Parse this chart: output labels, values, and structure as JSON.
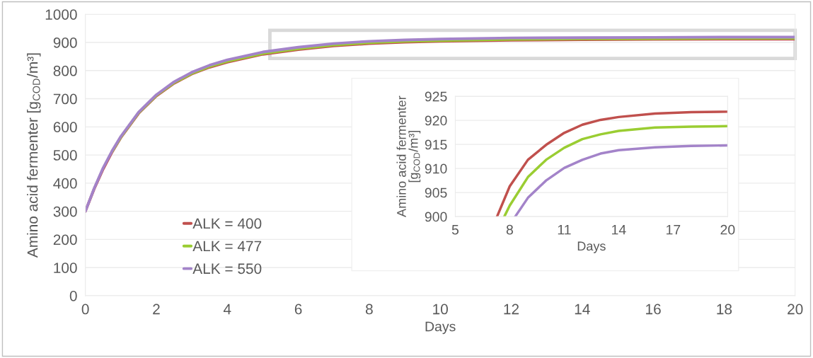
{
  "chart_data": [
    {
      "type": "line",
      "xlabel": "Days",
      "ylabel": "Amino acid fermenter [g$_{COD}$/m³]",
      "xlim": [
        0,
        20
      ],
      "ylim": [
        0,
        1000
      ],
      "xticks": [
        0,
        2,
        4,
        6,
        8,
        10,
        12,
        14,
        16,
        18,
        20
      ],
      "yticks": [
        0,
        100,
        200,
        300,
        400,
        500,
        600,
        700,
        800,
        900,
        1000
      ],
      "grid": "y",
      "legend": "bottom left",
      "line_style": "solid",
      "x": [
        0,
        0.25,
        0.5,
        0.75,
        1,
        1.5,
        2,
        2.5,
        3,
        3.5,
        4,
        5,
        6,
        7,
        8,
        9,
        10,
        12,
        14,
        16,
        18,
        20
      ],
      "series": [
        {
          "name": "ALK = 400",
          "color": "#c0504d",
          "values": [
            300,
            380,
            450,
            510,
            562,
            648,
            710,
            755,
            788,
            812,
            830,
            858,
            875,
            888,
            896,
            901,
            904,
            908,
            910,
            911,
            912,
            912
          ]
        },
        {
          "name": "ALK = 477",
          "color": "#9acd32",
          "values": [
            null,
            null,
            null,
            512,
            564,
            650,
            712,
            757,
            790,
            815,
            833,
            861,
            878,
            891,
            899,
            904,
            907,
            911,
            913,
            914,
            915,
            915
          ]
        },
        {
          "name": "ALK = 550",
          "color": "#a383c9",
          "values": [
            300,
            382,
            454,
            514,
            566,
            652,
            714,
            760,
            794,
            819,
            838,
            866,
            883,
            896,
            904,
            909,
            912,
            916,
            917,
            918,
            919,
            919
          ]
        }
      ]
    },
    {
      "type": "line",
      "xlabel": "Days",
      "ylabel": "Amino acid fermenter\n[g$_{COD}$/m³]",
      "xlim": [
        5,
        20
      ],
      "ylim": [
        900,
        925
      ],
      "xticks": [
        5,
        8,
        11,
        14,
        17,
        20
      ],
      "yticks": [
        900,
        905,
        910,
        915,
        920,
        925
      ],
      "grid": "y",
      "line_style": "solid",
      "series": [
        {
          "color": "#c0504d",
          "x": [
            7.3,
            8,
            9,
            10,
            11,
            12,
            13,
            14,
            16,
            18,
            20
          ],
          "values": [
            900,
            906.3,
            911.8,
            914.9,
            917.4,
            919.1,
            920.1,
            920.7,
            921.4,
            921.7,
            921.8
          ]
        },
        {
          "color": "#9acd32",
          "x": [
            7.7,
            8,
            9,
            10,
            11,
            12,
            13,
            14,
            16,
            18,
            20
          ],
          "values": [
            900,
            902.3,
            908.2,
            911.8,
            914.3,
            916.1,
            917.1,
            917.8,
            918.5,
            918.7,
            918.8
          ]
        },
        {
          "color": "#a383c9",
          "x": [
            8.3,
            9,
            10,
            11,
            12,
            13,
            14,
            16,
            18,
            20
          ],
          "values": [
            900,
            903.9,
            907.5,
            910.1,
            911.8,
            913.1,
            913.8,
            914.4,
            914.7,
            914.8
          ]
        }
      ]
    }
  ]
}
